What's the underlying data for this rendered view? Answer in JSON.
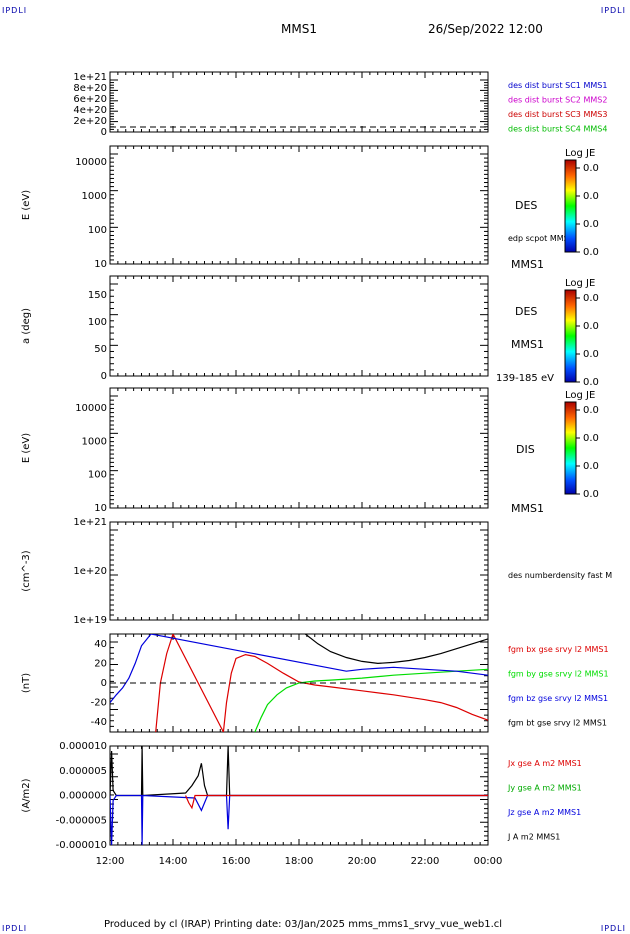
{
  "header": {
    "corner_label": "IPDLI",
    "spacecraft": "MMS1",
    "datetime": "26/Sep/2022 12:00"
  },
  "footer": {
    "text": "Produced by cl (IRAP)   Printing date: 03/Jan/2025   mms_mms1_srvy_vue_web1.cl"
  },
  "colorbar": {
    "title": "Log JE",
    "values": [
      "0.0",
      "0.0",
      "0.0",
      "0.0"
    ]
  },
  "chart_data": [
    {
      "type": "line",
      "ylim": [
        0,
        1.1e+21
      ],
      "yticks": [
        "1e+21",
        "8e+20",
        "6e+20",
        "4e+20",
        "2e+20",
        "0"
      ],
      "legend": [
        {
          "name": "des dist burst SC1 MMS1",
          "color": "#0000cc"
        },
        {
          "name": "des dist burst SC2 MMS2",
          "color": "#cc00cc"
        },
        {
          "name": "des dist burst SC3 MMS3",
          "color": "#cc0000"
        },
        {
          "name": "des dist burst SC4 MMS4",
          "color": "#00bb00"
        }
      ],
      "series": [],
      "zero_line": "dashed"
    },
    {
      "type": "heatmap",
      "ylabel": "E (eV)",
      "yscale": "log",
      "yticks": [
        "10000",
        "1000",
        "100",
        "10"
      ],
      "labels": [
        "DES",
        "edp scpot MMS1",
        "MMS1"
      ],
      "colorbar": true
    },
    {
      "type": "heatmap",
      "ylabel": "a (deg)",
      "yticks": [
        "150",
        "100",
        "50",
        "0"
      ],
      "labels": [
        "DES",
        "MMS1",
        "139-185 eV"
      ],
      "colorbar": true
    },
    {
      "type": "heatmap",
      "ylabel": "E (eV)",
      "yscale": "log",
      "yticks": [
        "10000",
        "1000",
        "100",
        "10"
      ],
      "labels": [
        "DIS",
        "MMS1"
      ],
      "colorbar": true
    },
    {
      "type": "line",
      "ylabel": "(cm^-3)",
      "yscale": "log",
      "yticks": [
        "1e+21",
        "1e+20",
        "1e+19"
      ],
      "legend": [
        {
          "name": "des numberdensity fast M",
          "color": "#000000"
        }
      ],
      "series": []
    },
    {
      "type": "line",
      "ylabel": "(nT)",
      "ylim": [
        -50,
        50
      ],
      "yticks": [
        "40",
        "20",
        "0",
        "-20",
        "-40"
      ],
      "x": [
        12,
        12.3,
        12.5,
        12.8,
        13.3,
        13.5,
        13.6,
        13.7,
        14,
        14.2,
        14.6,
        15,
        15.4,
        15.8,
        16.2,
        16.4,
        17,
        18,
        19,
        20,
        21,
        22,
        23,
        24
      ],
      "legend": [
        {
          "name": "fgm bx gse srvy l2 MMS1",
          "color": "#dd0000"
        },
        {
          "name": "fgm by gse srvy l2 MMS1",
          "color": "#00dd00"
        },
        {
          "name": "fgm bz gse srvy l2 MMS1",
          "color": "#0000dd"
        },
        {
          "name": "fgm bt gse srvy l2 MMS1",
          "color": "#000000"
        }
      ],
      "series": [
        {
          "name": "fgm bx gse srvy l2 MMS1",
          "color": "#dd0000",
          "x": [
            13.45,
            13.6,
            13.8,
            14.0,
            15.6,
            15.7,
            15.85,
            16.0,
            16.3,
            16.6,
            17,
            17.5,
            18,
            18.5,
            19,
            20,
            21,
            22,
            22.5,
            23,
            23.5,
            24
          ],
          "y": [
            -50,
            0,
            30,
            50,
            -50,
            -20,
            10,
            25,
            29,
            27,
            20,
            10,
            1,
            -2,
            -4,
            -8,
            -12,
            -17,
            -20,
            -25,
            -32,
            -38
          ]
        },
        {
          "name": "fgm by gse srvy l2 MMS1",
          "color": "#00dd00",
          "x": [
            16.6,
            16.8,
            17,
            17.3,
            17.6,
            18,
            18.5,
            19,
            19.5,
            20,
            21,
            22,
            23,
            24
          ],
          "y": [
            -50,
            -35,
            -22,
            -12,
            -5,
            0,
            2,
            3,
            4,
            5,
            8,
            10,
            12,
            14
          ]
        },
        {
          "name": "fgm bz gse srvy l2 MMS1",
          "color": "#0000dd",
          "x": [
            12,
            12.2,
            12.4,
            12.6,
            12.8,
            13.0,
            13.3,
            19.5,
            20,
            21,
            22,
            23,
            24
          ],
          "y": [
            -20,
            -12,
            -5,
            5,
            20,
            38,
            50,
            12,
            14,
            16,
            14,
            12,
            8
          ]
        },
        {
          "name": "fgm bt gse srvy l2 MMS1",
          "color": "#000000",
          "x": [
            18.2,
            18.6,
            19,
            19.5,
            20,
            20.5,
            21,
            21.5,
            22,
            22.5,
            23,
            23.5,
            24
          ],
          "y": [
            50,
            40,
            32,
            26,
            22,
            20,
            21,
            23,
            26,
            30,
            35,
            40,
            45
          ]
        }
      ],
      "zero_line": "dashed"
    },
    {
      "type": "line",
      "ylabel": "(A/m2)",
      "ylim": [
        -1e-05,
        1e-05
      ],
      "yticks": [
        "0.000010",
        "0.000005",
        "0.000000",
        "-0.000005",
        "-0.000010"
      ],
      "xticks": [
        "12:00",
        "14:00",
        "16:00",
        "18:00",
        "20:00",
        "22:00",
        "00:00"
      ],
      "xlim": [
        12,
        24
      ],
      "legend": [
        {
          "name": "Jx gse A m2 MMS1",
          "color": "#dd0000"
        },
        {
          "name": "Jy gse A m2 MMS1",
          "color": "#00aa00"
        },
        {
          "name": "Jz gse A m2 MMS1",
          "color": "#0000dd"
        },
        {
          "name": "J A m2 MMS1",
          "color": "#000000"
        }
      ],
      "series": [
        {
          "name": "J A m2 MMS1",
          "color": "#000000",
          "x": [
            12,
            12.05,
            12.1,
            12.2,
            13.0,
            13.02,
            13.04,
            14.4,
            14.6,
            14.8,
            14.9,
            15.0,
            15.1,
            15.7,
            15.75,
            15.8,
            16.5,
            24
          ],
          "y": [
            0,
            9e-06,
            1e-06,
            0,
            0,
            1e-05,
            0,
            5e-07,
            2e-06,
            4e-06,
            6.5e-06,
            2e-06,
            0,
            0,
            1e-05,
            0,
            0,
            0
          ]
        },
        {
          "name": "Jz gse A m2 MMS1",
          "color": "#0000dd",
          "x": [
            12,
            12.05,
            12.1,
            12.2,
            13.0,
            13.02,
            13.04,
            14.7,
            14.9,
            15.0,
            15.1,
            15.7,
            15.75,
            15.8,
            16.5,
            24
          ],
          "y": [
            0,
            -1e-05,
            -1e-06,
            0,
            0,
            -1e-05,
            0,
            -5e-07,
            -3e-06,
            -1.5e-06,
            0,
            0,
            -6.8e-06,
            0,
            0,
            0
          ]
        },
        {
          "name": "Jx gse A m2 MMS1",
          "color": "#dd0000",
          "x": [
            14.4,
            14.5,
            14.6,
            14.7,
            24
          ],
          "y": [
            0,
            -1.5e-06,
            -2.5e-06,
            0,
            0
          ]
        }
      ]
    }
  ]
}
